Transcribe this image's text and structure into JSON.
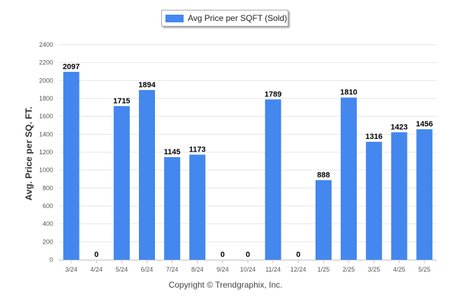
{
  "chart_data": {
    "type": "bar",
    "title": "",
    "xlabel": "",
    "ylabel": "Avg. Price per SQ. FT.",
    "ylim": [
      0,
      2400
    ],
    "yticks": [
      0,
      200,
      400,
      600,
      800,
      1000,
      1200,
      1400,
      1600,
      1800,
      2000,
      2200,
      2400
    ],
    "categories": [
      "3/24",
      "4/24",
      "5/24",
      "6/24",
      "7/24",
      "8/24",
      "9/24",
      "10/24",
      "11/24",
      "12/24",
      "1/25",
      "2/25",
      "3/25",
      "4/25",
      "5/25"
    ],
    "series": [
      {
        "name": "Avg Price per SQFT (Sold)",
        "color": "#4387ef",
        "values": [
          2097,
          0,
          1715,
          1894,
          1145,
          1173,
          0,
          0,
          1789,
          0,
          888,
          1810,
          1316,
          1423,
          1456
        ]
      }
    ],
    "data_labels": true,
    "grid": true,
    "legend_position": "top-center"
  },
  "footer": {
    "copyright": "Copyright © Trendgraphix, Inc."
  }
}
